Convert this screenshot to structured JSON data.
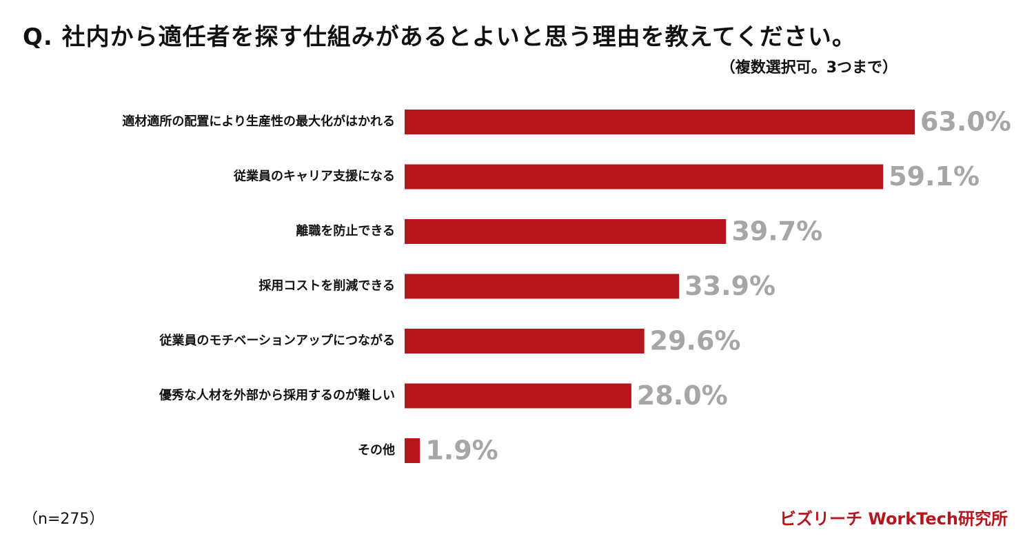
{
  "title": "Q. 社内から適任者を探す仕組みがあるとよいと思う理由を教えてください。",
  "subtitle": "（複数選択可。3つまで）",
  "footnote": "（n=275）",
  "brand": "ビズリーチ WorkTech研究所",
  "colors": {
    "bar": "#b5161e",
    "value_label": "#a6a6a6",
    "brand": "#b5161e",
    "text": "#111111"
  },
  "chart_data": {
    "type": "bar",
    "orientation": "horizontal",
    "categories": [
      "適材適所の配置により生産性の最大化がはかれる",
      "従業員のキャリア支援になる",
      "離職を防止できる",
      "採用コストを削減できる",
      "従業員のモチベーションアップにつながる",
      "優秀な人材を外部から採用するのが難しい",
      "その他"
    ],
    "values": [
      63.0,
      59.1,
      39.7,
      33.9,
      29.6,
      28.0,
      1.9
    ],
    "value_labels": [
      "63.0%",
      "59.1%",
      "39.7%",
      "33.9%",
      "29.6%",
      "28.0%",
      "1.9%"
    ],
    "unit": "%",
    "xlim": [
      0,
      63.0
    ],
    "grid": false,
    "legend": "none"
  }
}
